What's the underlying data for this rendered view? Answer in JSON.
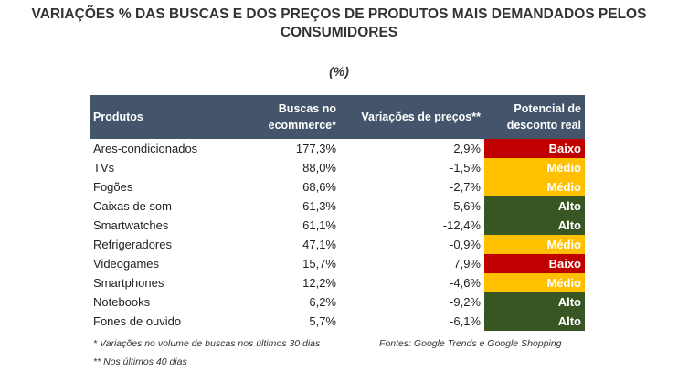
{
  "title": "VARIAÇÕES % DAS BUSCAS E DOS PREÇOS DE PRODUTOS MAIS DEMANDADOS PELOS CONSUMIDORES",
  "unit": "(%)",
  "colors": {
    "header": "#44546a",
    "Baixo": "#c00000",
    "Médio": "#ffc000",
    "Alto": "#375623"
  },
  "chart_data": {
    "type": "table",
    "columns": [
      "Produtos",
      "Buscas no ecommerce*",
      "Variações de preços**",
      "Potencial de desconto real"
    ],
    "rows": [
      [
        "Ares-condicionados",
        "177,3%",
        "2,9%",
        "Baixo"
      ],
      [
        "TVs",
        "88,0%",
        "-1,5%",
        "Médio"
      ],
      [
        "Fogões",
        "68,6%",
        "-2,7%",
        "Médio"
      ],
      [
        "Caixas de som",
        "61,3%",
        "-5,6%",
        "Alto"
      ],
      [
        "Smartwatches",
        "61,1%",
        "-12,4%",
        "Alto"
      ],
      [
        "Refrigeradores",
        "47,1%",
        "-0,9%",
        "Médio"
      ],
      [
        "Videogames",
        "15,7%",
        "7,9%",
        "Baixo"
      ],
      [
        "Smartphones",
        "12,2%",
        "-4,6%",
        "Médio"
      ],
      [
        "Notebooks",
        "6,2%",
        "-9,2%",
        "Alto"
      ],
      [
        "Fones de ouvido",
        "5,7%",
        "-6,1%",
        "Alto"
      ]
    ]
  },
  "footnotes": {
    "note1": "* Variações no volume de buscas nos últimos 30 dias",
    "note2": "** Nos últimos 40 dias",
    "source": "Fontes: Google Trends e Google Shopping"
  }
}
